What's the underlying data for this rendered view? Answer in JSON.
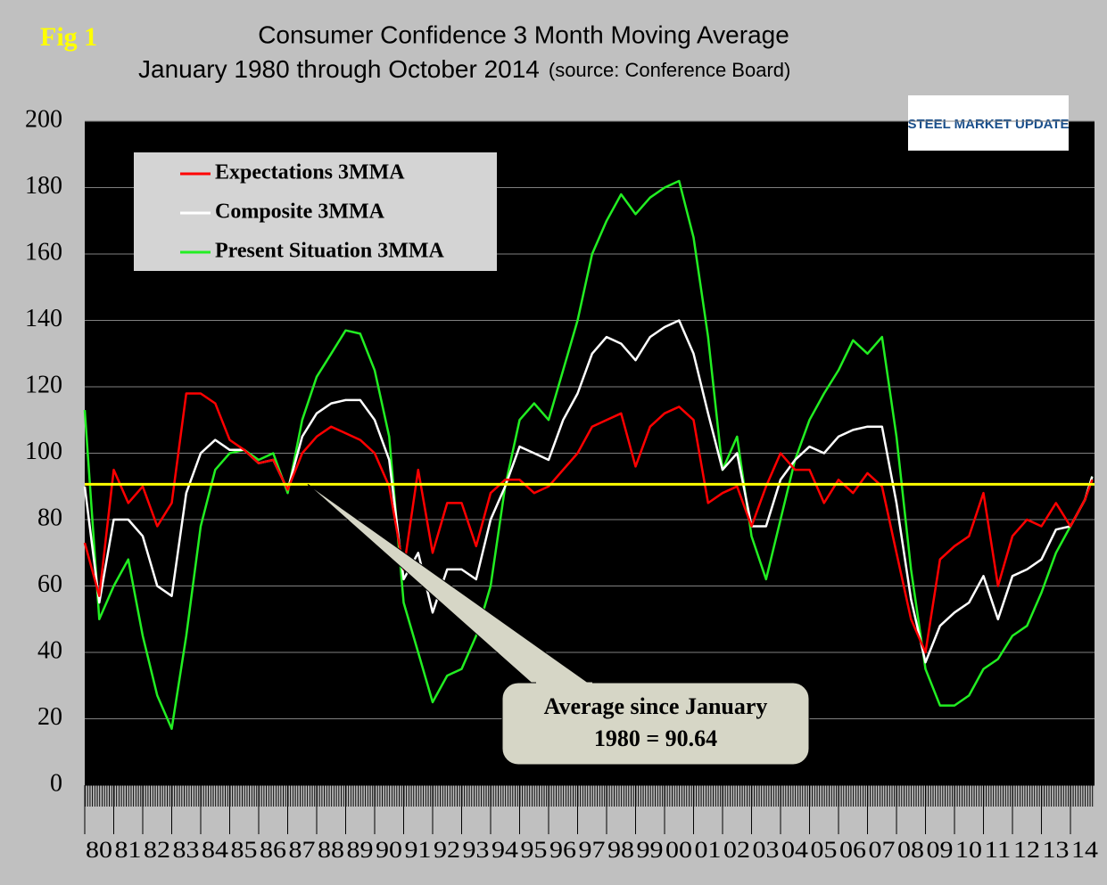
{
  "figure_label": "Fig 1",
  "logo": "STEEL MARKET UPDATE",
  "chart_data": {
    "type": "line",
    "title": "Consumer Confidence 3 Month Moving Average",
    "subtitle": "January 1980 through October 2014",
    "source": "(source: Conference Board)",
    "legend": "upper left",
    "grid": true,
    "ylim": [
      0,
      200
    ],
    "yticks": [
      0,
      20,
      40,
      60,
      80,
      100,
      120,
      140,
      160,
      180,
      200
    ],
    "xlim": [
      1980,
      2014.83
    ],
    "xticks": [
      {
        "value": 1980,
        "label": "80"
      },
      {
        "value": 1981,
        "label": "81"
      },
      {
        "value": 1982,
        "label": "82"
      },
      {
        "value": 1983,
        "label": "83"
      },
      {
        "value": 1984,
        "label": "84"
      },
      {
        "value": 1985,
        "label": "85"
      },
      {
        "value": 1986,
        "label": "86"
      },
      {
        "value": 1987,
        "label": "87"
      },
      {
        "value": 1988,
        "label": "88"
      },
      {
        "value": 1989,
        "label": "89"
      },
      {
        "value": 1990,
        "label": "90"
      },
      {
        "value": 1991,
        "label": "91"
      },
      {
        "value": 1992,
        "label": "92"
      },
      {
        "value": 1993,
        "label": "93"
      },
      {
        "value": 1994,
        "label": "94"
      },
      {
        "value": 1995,
        "label": "95"
      },
      {
        "value": 1996,
        "label": "96"
      },
      {
        "value": 1997,
        "label": "97"
      },
      {
        "value": 1998,
        "label": "98"
      },
      {
        "value": 1999,
        "label": "99"
      },
      {
        "value": 2000,
        "label": "00"
      },
      {
        "value": 2001,
        "label": "01"
      },
      {
        "value": 2002,
        "label": "02"
      },
      {
        "value": 2003,
        "label": "03"
      },
      {
        "value": 2004,
        "label": "04"
      },
      {
        "value": 2005,
        "label": "05"
      },
      {
        "value": 2006,
        "label": "06"
      },
      {
        "value": 2007,
        "label": "07"
      },
      {
        "value": 2008,
        "label": "08"
      },
      {
        "value": 2009,
        "label": "09"
      },
      {
        "value": 2010,
        "label": "10"
      },
      {
        "value": 2011,
        "label": "11"
      },
      {
        "value": 2012,
        "label": "12"
      },
      {
        "value": 2013,
        "label": "13"
      },
      {
        "value": 2014,
        "label": "14"
      }
    ],
    "x": [
      1980,
      1980.5,
      1981,
      1981.5,
      1982,
      1982.5,
      1983,
      1983.5,
      1984,
      1984.5,
      1985,
      1985.5,
      1986,
      1986.5,
      1987,
      1987.5,
      1988,
      1988.5,
      1989,
      1989.5,
      1990,
      1990.5,
      1991,
      1991.5,
      1992,
      1992.5,
      1993,
      1993.5,
      1994,
      1994.5,
      1995,
      1995.5,
      1996,
      1996.5,
      1997,
      1997.5,
      1998,
      1998.5,
      1999,
      1999.5,
      2000,
      2000.5,
      2001,
      2001.5,
      2002,
      2002.5,
      2003,
      2003.5,
      2004,
      2004.5,
      2005,
      2005.5,
      2006,
      2006.5,
      2007,
      2007.5,
      2008,
      2008.5,
      2009,
      2009.5,
      2010,
      2010.5,
      2011,
      2011.5,
      2012,
      2012.5,
      2013,
      2013.5,
      2014,
      2014.5,
      2014.75
    ],
    "series": [
      {
        "name": "Expectations 3MMA",
        "color": "#ff0000",
        "values": [
          73,
          57,
          95,
          85,
          90,
          78,
          85,
          118,
          118,
          115,
          104,
          101,
          97,
          98,
          89,
          100,
          105,
          108,
          106,
          104,
          100,
          90,
          65,
          95,
          70,
          85,
          85,
          72,
          88,
          92,
          92,
          88,
          90,
          95,
          100,
          108,
          110,
          112,
          96,
          108,
          112,
          114,
          110,
          85,
          88,
          90,
          78,
          90,
          100,
          95,
          95,
          85,
          92,
          88,
          94,
          90,
          70,
          50,
          40,
          68,
          72,
          75,
          88,
          60,
          75,
          80,
          78,
          85,
          78,
          86,
          92
        ]
      },
      {
        "name": "Composite 3MMA",
        "color": "#ffffff",
        "values": [
          90,
          55,
          80,
          80,
          75,
          60,
          57,
          88,
          100,
          104,
          101,
          101,
          97,
          98,
          89,
          105,
          112,
          115,
          116,
          116,
          110,
          98,
          62,
          70,
          52,
          65,
          65,
          62,
          80,
          90,
          102,
          100,
          98,
          110,
          118,
          130,
          135,
          133,
          128,
          135,
          138,
          140,
          130,
          112,
          95,
          100,
          78,
          78,
          92,
          98,
          102,
          100,
          105,
          107,
          108,
          108,
          85,
          56,
          37,
          48,
          52,
          55,
          63,
          50,
          63,
          65,
          68,
          77,
          78,
          86,
          93
        ]
      },
      {
        "name": "Present Situation 3MMA",
        "color": "#22ee22",
        "values": [
          113,
          50,
          60,
          68,
          45,
          27,
          17,
          45,
          78,
          95,
          100,
          101,
          98,
          100,
          88,
          110,
          123,
          130,
          137,
          136,
          125,
          105,
          55,
          40,
          25,
          33,
          35,
          45,
          60,
          90,
          110,
          115,
          110,
          125,
          140,
          160,
          170,
          178,
          172,
          177,
          180,
          182,
          165,
          135,
          95,
          105,
          75,
          62,
          80,
          98,
          110,
          118,
          125,
          134,
          130,
          135,
          105,
          65,
          35,
          24,
          24,
          27,
          35,
          38,
          45,
          48,
          58,
          70,
          78,
          86,
          93
        ]
      }
    ],
    "average": {
      "value": 90.64,
      "color": "#ffff00",
      "label": [
        "Average since January",
        "1980 = 90.64"
      ]
    }
  }
}
